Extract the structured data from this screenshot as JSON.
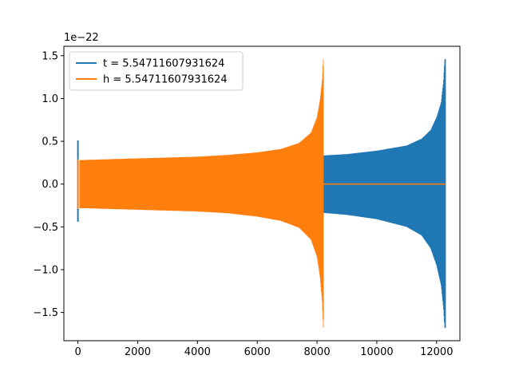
{
  "chart_data": {
    "type": "line",
    "offset_text": "1e−22",
    "scale_exponent": -22,
    "xlim": [
      -470,
      12780
    ],
    "ylim": [
      -1.83,
      1.61
    ],
    "x_ticks": [
      0,
      2000,
      4000,
      6000,
      8000,
      10000,
      12000
    ],
    "x_tick_labels": [
      "0",
      "2000",
      "4000",
      "6000",
      "8000",
      "10000",
      "12000"
    ],
    "y_ticks": [
      -1.5,
      -1.0,
      -0.5,
      0.0,
      0.5,
      1.0,
      1.5
    ],
    "y_tick_labels": [
      "−1.5",
      "−1.0",
      "−0.5",
      "0.0",
      "0.5",
      "1.0",
      "1.5"
    ],
    "grid": false,
    "legend_position": "upper-left",
    "series": [
      {
        "name": "t = 5.54711607931624",
        "color": "#1f77b4",
        "kind": "chirp",
        "spike": {
          "x": 0,
          "max": 0.51,
          "min": -0.44
        },
        "x_start": 60,
        "x_end": 12290,
        "upper_envelope": [
          [
            60,
            0.27
          ],
          [
            2000,
            0.28
          ],
          [
            4000,
            0.29
          ],
          [
            6000,
            0.31
          ],
          [
            8000,
            0.33
          ],
          [
            9000,
            0.35
          ],
          [
            10000,
            0.39
          ],
          [
            11000,
            0.45
          ],
          [
            11500,
            0.53
          ],
          [
            11800,
            0.63
          ],
          [
            12000,
            0.78
          ],
          [
            12150,
            0.95
          ],
          [
            12230,
            1.2
          ],
          [
            12270,
            1.46
          ],
          [
            12290,
            1.46
          ]
        ],
        "lower_envelope": [
          [
            60,
            -0.28
          ],
          [
            2000,
            -0.28
          ],
          [
            4000,
            -0.29
          ],
          [
            6000,
            -0.31
          ],
          [
            8000,
            -0.33
          ],
          [
            9000,
            -0.36
          ],
          [
            10000,
            -0.41
          ],
          [
            11000,
            -0.5
          ],
          [
            11500,
            -0.6
          ],
          [
            11800,
            -0.75
          ],
          [
            12000,
            -0.95
          ],
          [
            12150,
            -1.18
          ],
          [
            12230,
            -1.45
          ],
          [
            12270,
            -1.68
          ],
          [
            12290,
            -1.68
          ]
        ],
        "tail": {
          "x_from": 12290,
          "x_to": 12290,
          "y": 0
        }
      },
      {
        "name": "h = 5.54711607931624",
        "color": "#ff7f0e",
        "kind": "chirp",
        "spike": {
          "x": 0,
          "max": 0.29,
          "min": -0.29
        },
        "x_start": 60,
        "x_end": 8220,
        "upper_envelope": [
          [
            60,
            0.28
          ],
          [
            1000,
            0.29
          ],
          [
            2000,
            0.3
          ],
          [
            3000,
            0.31
          ],
          [
            4000,
            0.32
          ],
          [
            5000,
            0.34
          ],
          [
            6000,
            0.37
          ],
          [
            6800,
            0.41
          ],
          [
            7400,
            0.48
          ],
          [
            7800,
            0.6
          ],
          [
            8000,
            0.78
          ],
          [
            8100,
            0.98
          ],
          [
            8170,
            1.2
          ],
          [
            8210,
            1.46
          ],
          [
            8220,
            1.46
          ]
        ],
        "lower_envelope": [
          [
            60,
            -0.28
          ],
          [
            1000,
            -0.29
          ],
          [
            2000,
            -0.3
          ],
          [
            3000,
            -0.31
          ],
          [
            4000,
            -0.32
          ],
          [
            5000,
            -0.34
          ],
          [
            6000,
            -0.38
          ],
          [
            6800,
            -0.43
          ],
          [
            7400,
            -0.51
          ],
          [
            7800,
            -0.65
          ],
          [
            8000,
            -0.85
          ],
          [
            8100,
            -1.08
          ],
          [
            8170,
            -1.35
          ],
          [
            8210,
            -1.68
          ],
          [
            8220,
            -1.68
          ]
        ],
        "tail": {
          "x_from": 8220,
          "x_to": 12290,
          "y": 0
        }
      }
    ]
  }
}
